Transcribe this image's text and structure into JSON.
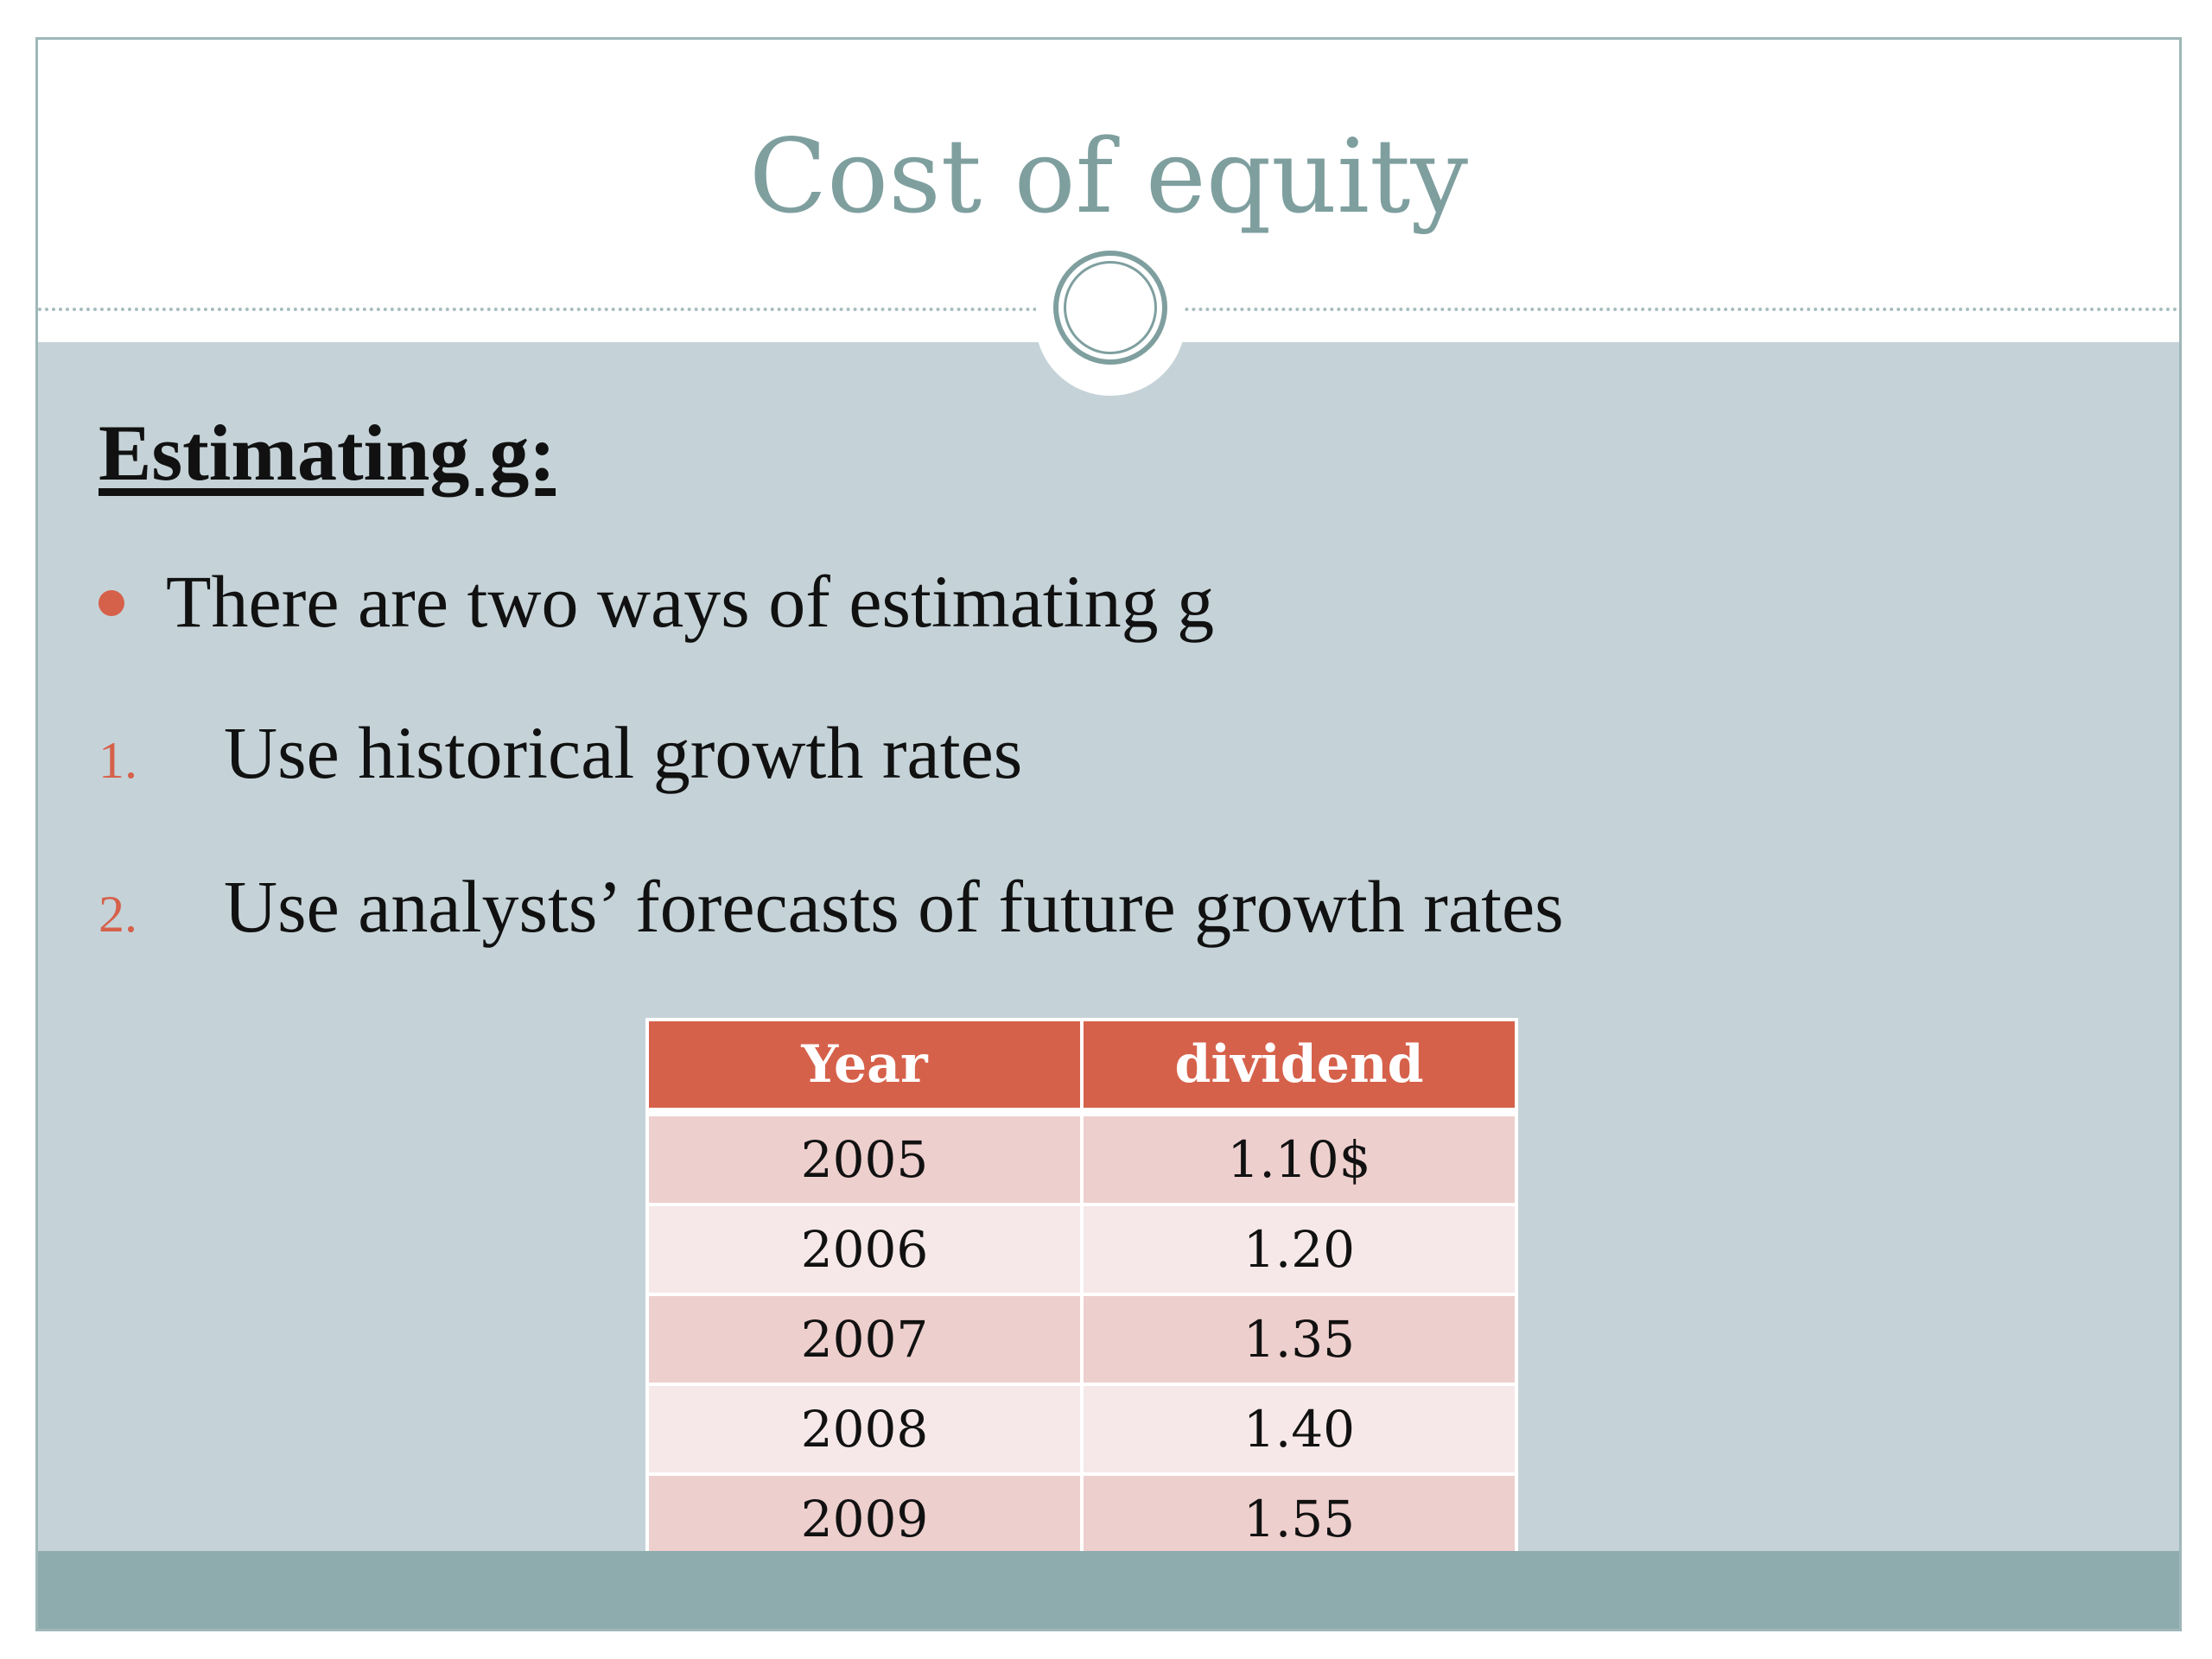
{
  "slide": {
    "title": "Cost of equity",
    "heading": "Estimating g:",
    "bullet": "There are two ways of estimating g",
    "numbered_items": [
      {
        "marker": "1.",
        "text": "Use historical growth rates"
      },
      {
        "marker": "2.",
        "text": "Use analysts’ forecasts of future growth rates"
      }
    ]
  },
  "table": {
    "headers": [
      "Year",
      "dividend"
    ],
    "rows": [
      [
        "2005",
        "1.10$"
      ],
      [
        "2006",
        "1.20"
      ],
      [
        "2007",
        "1.35"
      ],
      [
        "2008",
        "1.40"
      ],
      [
        "2009",
        "1.55"
      ]
    ]
  },
  "colors": {
    "accent": "#d6614b",
    "title": "#7f9f9f",
    "body_background": "#c5d3d8",
    "footer_bar": "#8eabad"
  }
}
